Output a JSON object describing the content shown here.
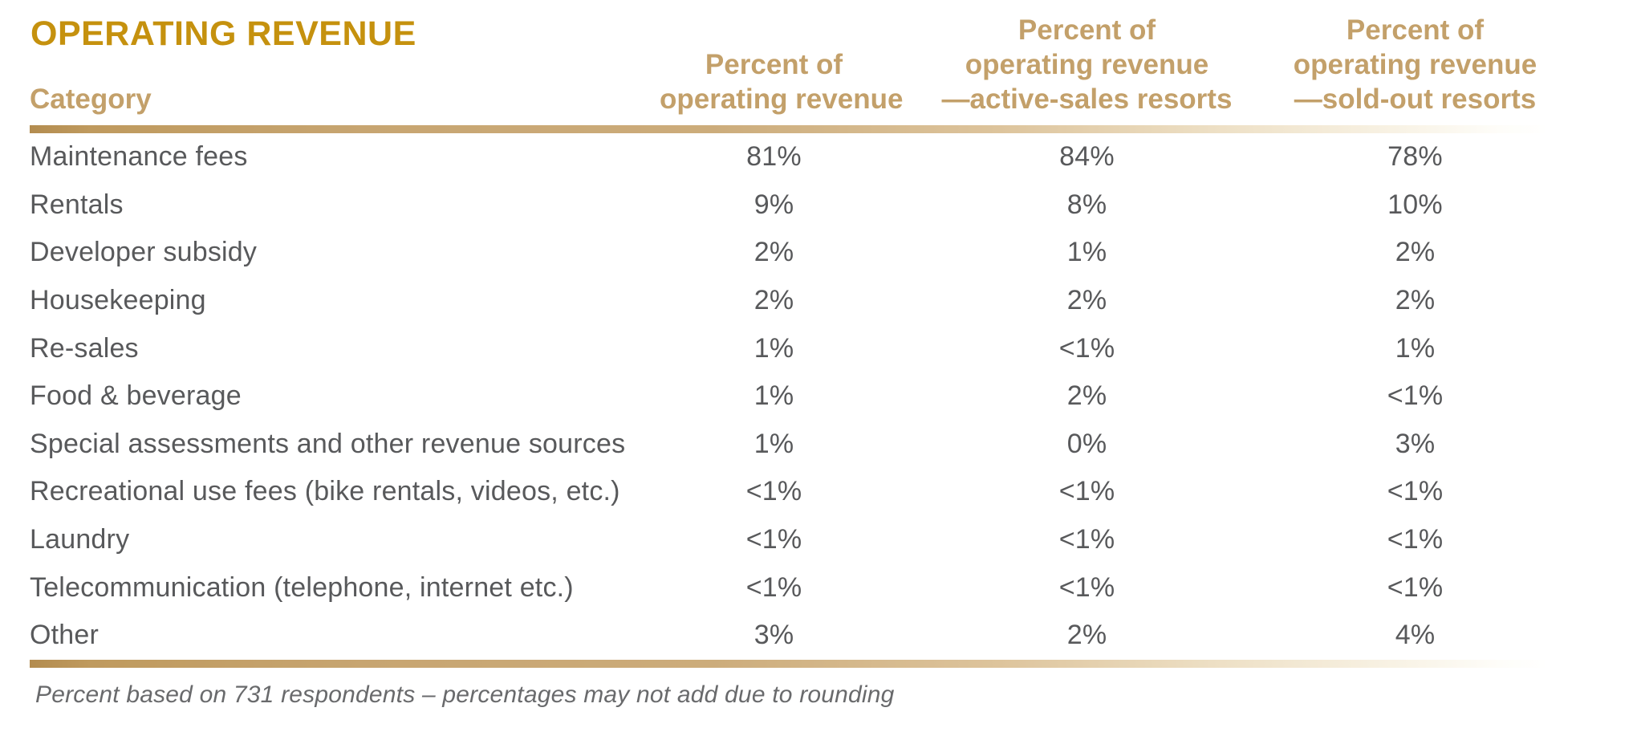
{
  "title": "OPERATING REVENUE",
  "colors": {
    "title_gold": "#c5910e",
    "header_tan": "#c3a06a",
    "rule_tan": "#bd975c",
    "body_text": "#58595b",
    "footnote_gray": "#696a6c"
  },
  "table": {
    "category_header": "Category",
    "column_headers": [
      {
        "lines": [
          "Percent of",
          "operating revenue"
        ]
      },
      {
        "lines": [
          "Percent of",
          "operating revenue",
          "—active-sales resorts"
        ]
      },
      {
        "lines": [
          "Percent of",
          "operating revenue",
          "—sold-out resorts"
        ]
      }
    ],
    "rows": [
      {
        "category": "Maintenance fees",
        "values": [
          "81%",
          "84%",
          "78%"
        ]
      },
      {
        "category": "Rentals",
        "values": [
          "9%",
          "8%",
          "10%"
        ]
      },
      {
        "category": "Developer subsidy",
        "values": [
          "2%",
          "1%",
          "2%"
        ]
      },
      {
        "category": "Housekeeping",
        "values": [
          "2%",
          "2%",
          "2%"
        ]
      },
      {
        "category": "Re-sales",
        "values": [
          "1%",
          "<1%",
          "1%"
        ]
      },
      {
        "category": "Food & beverage",
        "values": [
          "1%",
          "2%",
          "<1%"
        ]
      },
      {
        "category": "Special assessments and other revenue sources",
        "values": [
          "1%",
          "0%",
          "3%"
        ]
      },
      {
        "category": "Recreational use fees (bike rentals, videos, etc.)",
        "values": [
          "<1%",
          "<1%",
          "<1%"
        ]
      },
      {
        "category": "Laundry",
        "values": [
          "<1%",
          "<1%",
          "<1%"
        ]
      },
      {
        "category": "Telecommunication (telephone, internet etc.)",
        "values": [
          "<1%",
          "<1%",
          "<1%"
        ]
      },
      {
        "category": "Other",
        "values": [
          "3%",
          "2%",
          "4%"
        ]
      }
    ]
  },
  "footnote": "Percent based on 731 respondents – percentages may not add due to rounding",
  "chart_data": {
    "type": "table",
    "title": "OPERATING REVENUE",
    "columns": [
      "Category",
      "Percent of operating revenue",
      "Percent of operating revenue —active-sales resorts",
      "Percent of operating revenue —sold-out resorts"
    ],
    "rows": [
      [
        "Maintenance fees",
        "81%",
        "84%",
        "78%"
      ],
      [
        "Rentals",
        "9%",
        "8%",
        "10%"
      ],
      [
        "Developer subsidy",
        "2%",
        "1%",
        "2%"
      ],
      [
        "Housekeeping",
        "2%",
        "2%",
        "2%"
      ],
      [
        "Re-sales",
        "1%",
        "<1%",
        "1%"
      ],
      [
        "Food & beverage",
        "1%",
        "2%",
        "<1%"
      ],
      [
        "Special assessments and other revenue sources",
        "1%",
        "0%",
        "3%"
      ],
      [
        "Recreational use fees (bike rentals, videos, etc.)",
        "<1%",
        "<1%",
        "<1%"
      ],
      [
        "Laundry",
        "<1%",
        "<1%",
        "<1%"
      ],
      [
        "Telecommunication (telephone, internet etc.)",
        "<1%",
        "<1%",
        "<1%"
      ],
      [
        "Other",
        "3%",
        "2%",
        "4%"
      ]
    ],
    "footnote": "Percent based on 731 respondents – percentages may not add due to rounding"
  }
}
